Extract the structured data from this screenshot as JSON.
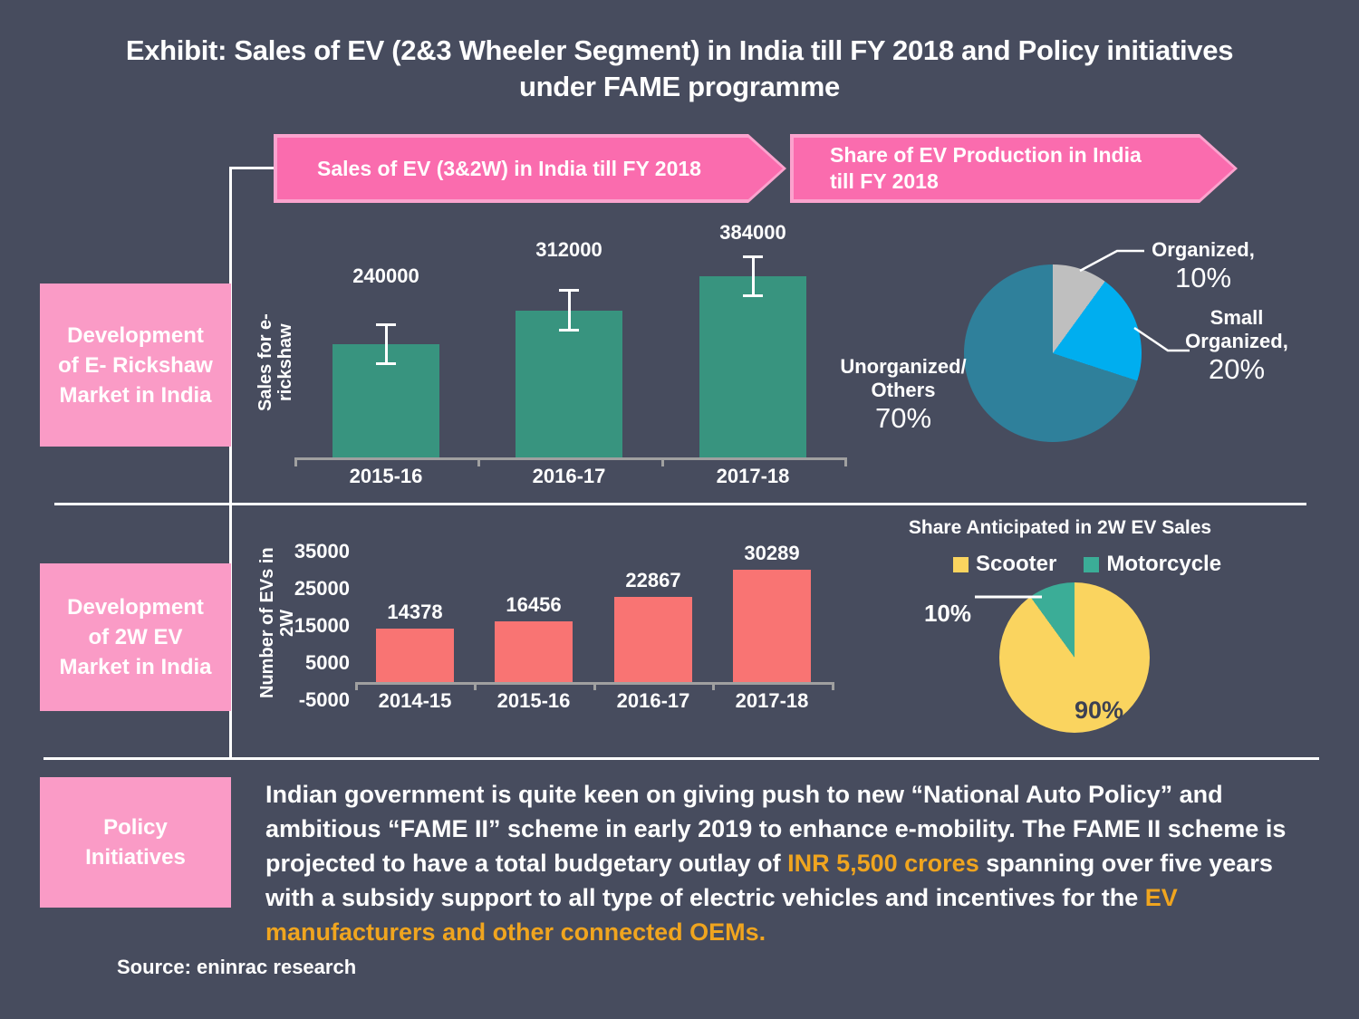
{
  "title": "Exhibit: Sales of EV (2&3 Wheeler Segment) in India till FY 2018 and Policy initiatives under FAME programme",
  "banners": {
    "sales": "Sales of EV (3&2W) in India till FY 2018",
    "share": "Share of EV Production in India\ntill FY 2018"
  },
  "sections": {
    "e_rickshaw": "Development\nof E- Rickshaw\nMarket in India",
    "two_wheeler": "Development\nof 2W EV\nMarket in India",
    "policy": "Policy\nInitiatives"
  },
  "colors": {
    "background": "#474C5E",
    "pink_box": "#FA9BC6",
    "banner_fill": "#FA6CAE",
    "banner_border": "#FBA3CE",
    "teal_bar": "#38947F",
    "salmon_bar": "#F97473",
    "pie1_gray": "#BFBFBF",
    "pie1_blue": "#00AEEF",
    "pie1_teal": "#2F809B",
    "pie2_yellow": "#FAD45F",
    "pie2_teal": "#3BAD97",
    "highlight_orange": "#F0A51F",
    "axis_gray": "#A0A0A0",
    "dark_label": "#3C4153",
    "white": "#FFFFFF"
  },
  "chart_data": [
    {
      "type": "bar",
      "title": "",
      "ylabel": "Sales for e-rickshaw",
      "categories": [
        "2015-16",
        "2016-17",
        "2017-18"
      ],
      "values": [
        240000,
        312000,
        384000
      ],
      "data_labels": [
        "240000",
        "312000",
        "384000"
      ],
      "bar_color": "#38947F",
      "error_bars": {
        "visible": true,
        "approx_value": 45000
      },
      "ylim": [
        0,
        384000
      ],
      "grid": false,
      "legend_position": "none"
    },
    {
      "type": "pie",
      "title": "Share of EV Production in India till FY 2018",
      "start_angle_deg": 0,
      "direction": "clockwise",
      "slices": [
        {
          "label": "Organized",
          "label_lines": [
            "Organized,"
          ],
          "pct": "10%",
          "value": 10,
          "color": "#BFBFBF"
        },
        {
          "label": "Small Organized",
          "label_lines": [
            "Small",
            "Organized,"
          ],
          "pct": "20%",
          "value": 20,
          "color": "#00AEEF"
        },
        {
          "label": "Unorganized/ Others",
          "label_lines": [
            "Unorganized/",
            "Others"
          ],
          "pct": "70%",
          "value": 70,
          "color": "#2F809B"
        }
      ]
    },
    {
      "type": "bar",
      "title": "",
      "ylabel": "Number of EVs in\n2W",
      "categories": [
        "2014-15",
        "2015-16",
        "2016-17",
        "2017-18"
      ],
      "values": [
        14378,
        16456,
        22867,
        30289
      ],
      "data_labels": [
        "14378",
        "16456",
        "22867",
        "30289"
      ],
      "bar_color": "#F97473",
      "yticks": [
        35000,
        25000,
        15000,
        5000,
        -5000
      ],
      "ylim": [
        -5000,
        35000
      ],
      "grid": false,
      "legend_position": "none"
    },
    {
      "type": "pie",
      "title": "Share Anticipated in 2W EV Sales",
      "start_angle_deg": 0,
      "direction": "clockwise",
      "legend_position": "top",
      "slices": [
        {
          "label": "Scooter",
          "pct": "90%",
          "value": 90,
          "color": "#FAD45F"
        },
        {
          "label": "Motorcycle",
          "pct": "10%",
          "value": 10,
          "color": "#3BAD97"
        }
      ]
    }
  ],
  "policy": {
    "segments": [
      {
        "text": "Indian government is quite keen on giving push to new “National Auto Policy” and ambitious “FAME II” scheme in early 2019 to enhance e-mobility. The FAME II scheme is projected to have a total budgetary outlay of ",
        "highlight": false
      },
      {
        "text": "INR 5,500 crores",
        "highlight": true
      },
      {
        "text": " spanning over five years with a subsidy support to all type of electric vehicles and incentives for the ",
        "highlight": false
      },
      {
        "text": "EV manufacturers and other connected OEMs.",
        "highlight": true
      }
    ]
  },
  "source": "Source: eninrac research"
}
